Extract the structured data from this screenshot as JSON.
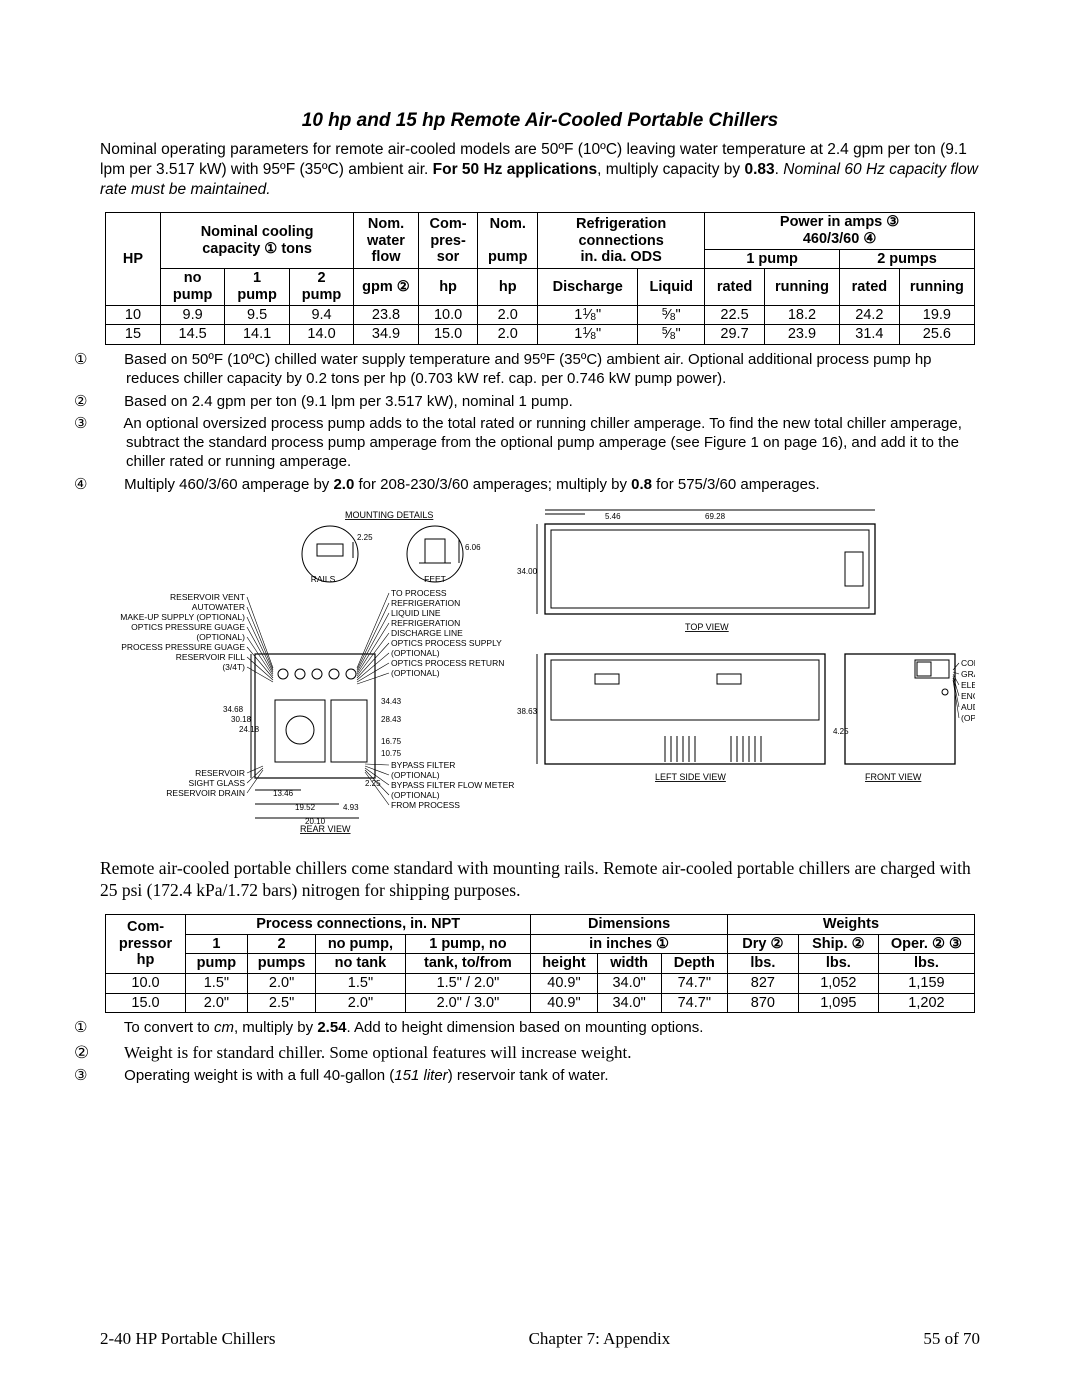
{
  "title": "10 hp and 15 hp Remote Air-Cooled Portable Chillers",
  "intro_para_html": "Nominal operating parameters for remote air-cooled models are 50ºF (10ºC) leaving water temperature at 2.4 gpm per ton (9.1 lpm per 3.517 kW) with 95ºF (35ºC) ambient air. <b>For 50 Hz applications</b>, multiply capacity by <b>0.83</b>. <i>Nominal 60 Hz capacity flow rate must be maintained.</i>",
  "table1": {
    "group_headers": {
      "hp": "HP",
      "nominal_cap": "Nominal cooling capacity ① tons",
      "nom_water": "Nom. water flow gpm ②",
      "compressor": "Com-pres-sor hp",
      "nom_pump": "Nom. pump hp",
      "refrig": "Refrigeration connections in. dia. ODS",
      "power": "Power in amps ③ 460/3/60 ④"
    },
    "sub_headers": {
      "no_pump": "no pump",
      "one_pump": "1 pump",
      "two_pump": "2 pump",
      "discharge": "Discharge",
      "liquid": "Liquid",
      "p1": "1 pump",
      "p2": "2 pumps",
      "rated": "rated",
      "running": "running"
    },
    "rows": [
      {
        "hp": "10",
        "no": "9.9",
        "one": "9.5",
        "two": "9.4",
        "flow": "23.8",
        "comp": "10.0",
        "pump": "2.0",
        "disch": "1 1⁄8\"",
        "liq": "5⁄8\"",
        "r1": "22.5",
        "run1": "18.2",
        "r2": "24.2",
        "run2": "19.9"
      },
      {
        "hp": "15",
        "no": "14.5",
        "one": "14.1",
        "two": "14.0",
        "flow": "34.9",
        "comp": "15.0",
        "pump": "2.0",
        "disch": "1 1⁄8\"",
        "liq": "5⁄8\"",
        "r1": "29.7",
        "run1": "23.9",
        "r2": "31.4",
        "run2": "25.6"
      }
    ]
  },
  "notes1": [
    "① Based on 50ºF (10ºC) chilled water supply temperature and 95ºF (35ºC) ambient air. Optional additional process pump hp reduces chiller capacity by 0.2 tons per hp (0.703 kW ref. cap. per 0.746 kW pump power).",
    "② Based on 2.4 gpm per ton (9.1 lpm per 3.517 kW), nominal 1 pump.",
    "③ An optional oversized process pump adds to the total rated or running chiller amperage. To find the new total chiller amperage, subtract the standard process pump amperage from the optional pump amperage (see Figure 1 on page 16), and add it to the chiller rated or running amperage.",
    "④ Multiply 460/3/60 amperage by <b>2.0</b> for 208-230/3/60 amperages; multiply by <b>0.8</b> for 575/3/60 amperages."
  ],
  "diagram": {
    "left_labels": [
      "RESERVOIR VENT",
      "AUTOWATER",
      "MAKE-UP SUPPLY (OPTIONAL)",
      "OPTICS PRESSURE GUAGE",
      "(OPTIONAL)",
      "PROCESS PRESSURE GUAGE",
      "RESERVOIR FILL",
      "(3/4T)"
    ],
    "left_labels2": [
      "RESERVOIR",
      "SIGHT GLASS",
      "RESERVOIR DRAIN"
    ],
    "center_labels": [
      "TO PROCESS",
      "REFRIGERATION",
      "LIQUID LINE",
      "REFRIGERATION",
      "DISCHARGE LINE",
      "OPTICS PROCESS SUPPLY",
      "(OPTIONAL)",
      "OPTICS PROCESS RETURN",
      "(OPTIONAL)"
    ],
    "bypass_labels": [
      "BYPASS FILTER",
      "(OPTIONAL)",
      "BYPASS FILTER FLOW METER",
      "(OPTIONAL)",
      "FROM PROCESS"
    ],
    "right_labels": [
      "CONTROLLER WITH",
      "GRAPHIC PANEL",
      "ELECTRICAL",
      "ENCLOSURE",
      "AUDIBLE & VISUAL ALARM",
      "(OPTIONAL)"
    ],
    "top_labels": {
      "mounting": "MOUNTING DETAILS",
      "rails": "RAILS",
      "feet": "FEET"
    },
    "captions": {
      "top_view": "TOP VIEW",
      "left_side": "LEFT SIDE VIEW",
      "front_view": "FRONT VIEW",
      "rear_view": "REAR VIEW"
    },
    "dims": {
      "d_2_25": "2.25",
      "d_6_06": "6.06",
      "d_5_46": "5.46",
      "d_69_28": "69.28",
      "d_34_00": "34.00",
      "d_38_63": "38.63",
      "d_34_68": "34.68",
      "d_30_18": "30.18",
      "d_24_18": "24.18",
      "d_34_43": "34.43",
      "d_28_43": "28.43",
      "d_16_75": "16.75",
      "d_10_75": "10.75",
      "d_13_46": "13.46",
      "d_19_52": "19.52",
      "d_4_93": "4.93",
      "d_20_10": "20.10",
      "d_2_25b": "2.25",
      "d_4_25": "4.25"
    }
  },
  "mid_para": "Remote air-cooled portable chillers come standard with mounting rails. Remote air-cooled portable chillers are charged with 25 psi (172.4 kPa/1.72 bars) nitrogen for shipping purposes.",
  "table2": {
    "group_headers": {
      "comp": "Com-pressor hp",
      "proc": "Process connections, in. NPT",
      "dims": "Dimensions in inches ①",
      "wts": "Weights"
    },
    "sub_headers": {
      "p1": "1 pump",
      "p2": "2 pumps",
      "np_nt": "no pump, no tank",
      "p1_nt": "1 pump, no tank, to/from",
      "h": "height",
      "w": "width",
      "d": "Depth",
      "dry": "Dry ②",
      "ship": "Ship. ②",
      "oper": "Oper. ② ③",
      "lbs": "lbs."
    },
    "rows": [
      {
        "hp": "10.0",
        "p1": "1.5\"",
        "p2": "2.0\"",
        "npnt": "1.5\"",
        "p1nt": "1.5\" / 2.0\"",
        "h": "40.9\"",
        "w": "34.0\"",
        "d": "74.7\"",
        "dry": "827",
        "ship": "1,052",
        "oper": "1,159"
      },
      {
        "hp": "15.0",
        "p1": "2.0\"",
        "p2": "2.5\"",
        "npnt": "2.0\"",
        "p1nt": "2.0\" / 3.0\"",
        "h": "40.9\"",
        "w": "34.0\"",
        "d": "74.7\"",
        "dry": "870",
        "ship": "1,095",
        "oper": "1,202"
      }
    ]
  },
  "notes2": [
    "① To convert to <i>cm</i>, multiply by <b>2.54</b>. Add to height dimension based on mounting options.",
    "② Weight is for standard chiller. Some optional features will increase weight.",
    "③ Operating weight is with a full 40-gallon (<i>151 liter</i>) reservoir tank of water."
  ],
  "footer": {
    "left": "2-40 HP Portable Chillers",
    "center": "Chapter 7: Appendix",
    "right": "55 of 70"
  }
}
